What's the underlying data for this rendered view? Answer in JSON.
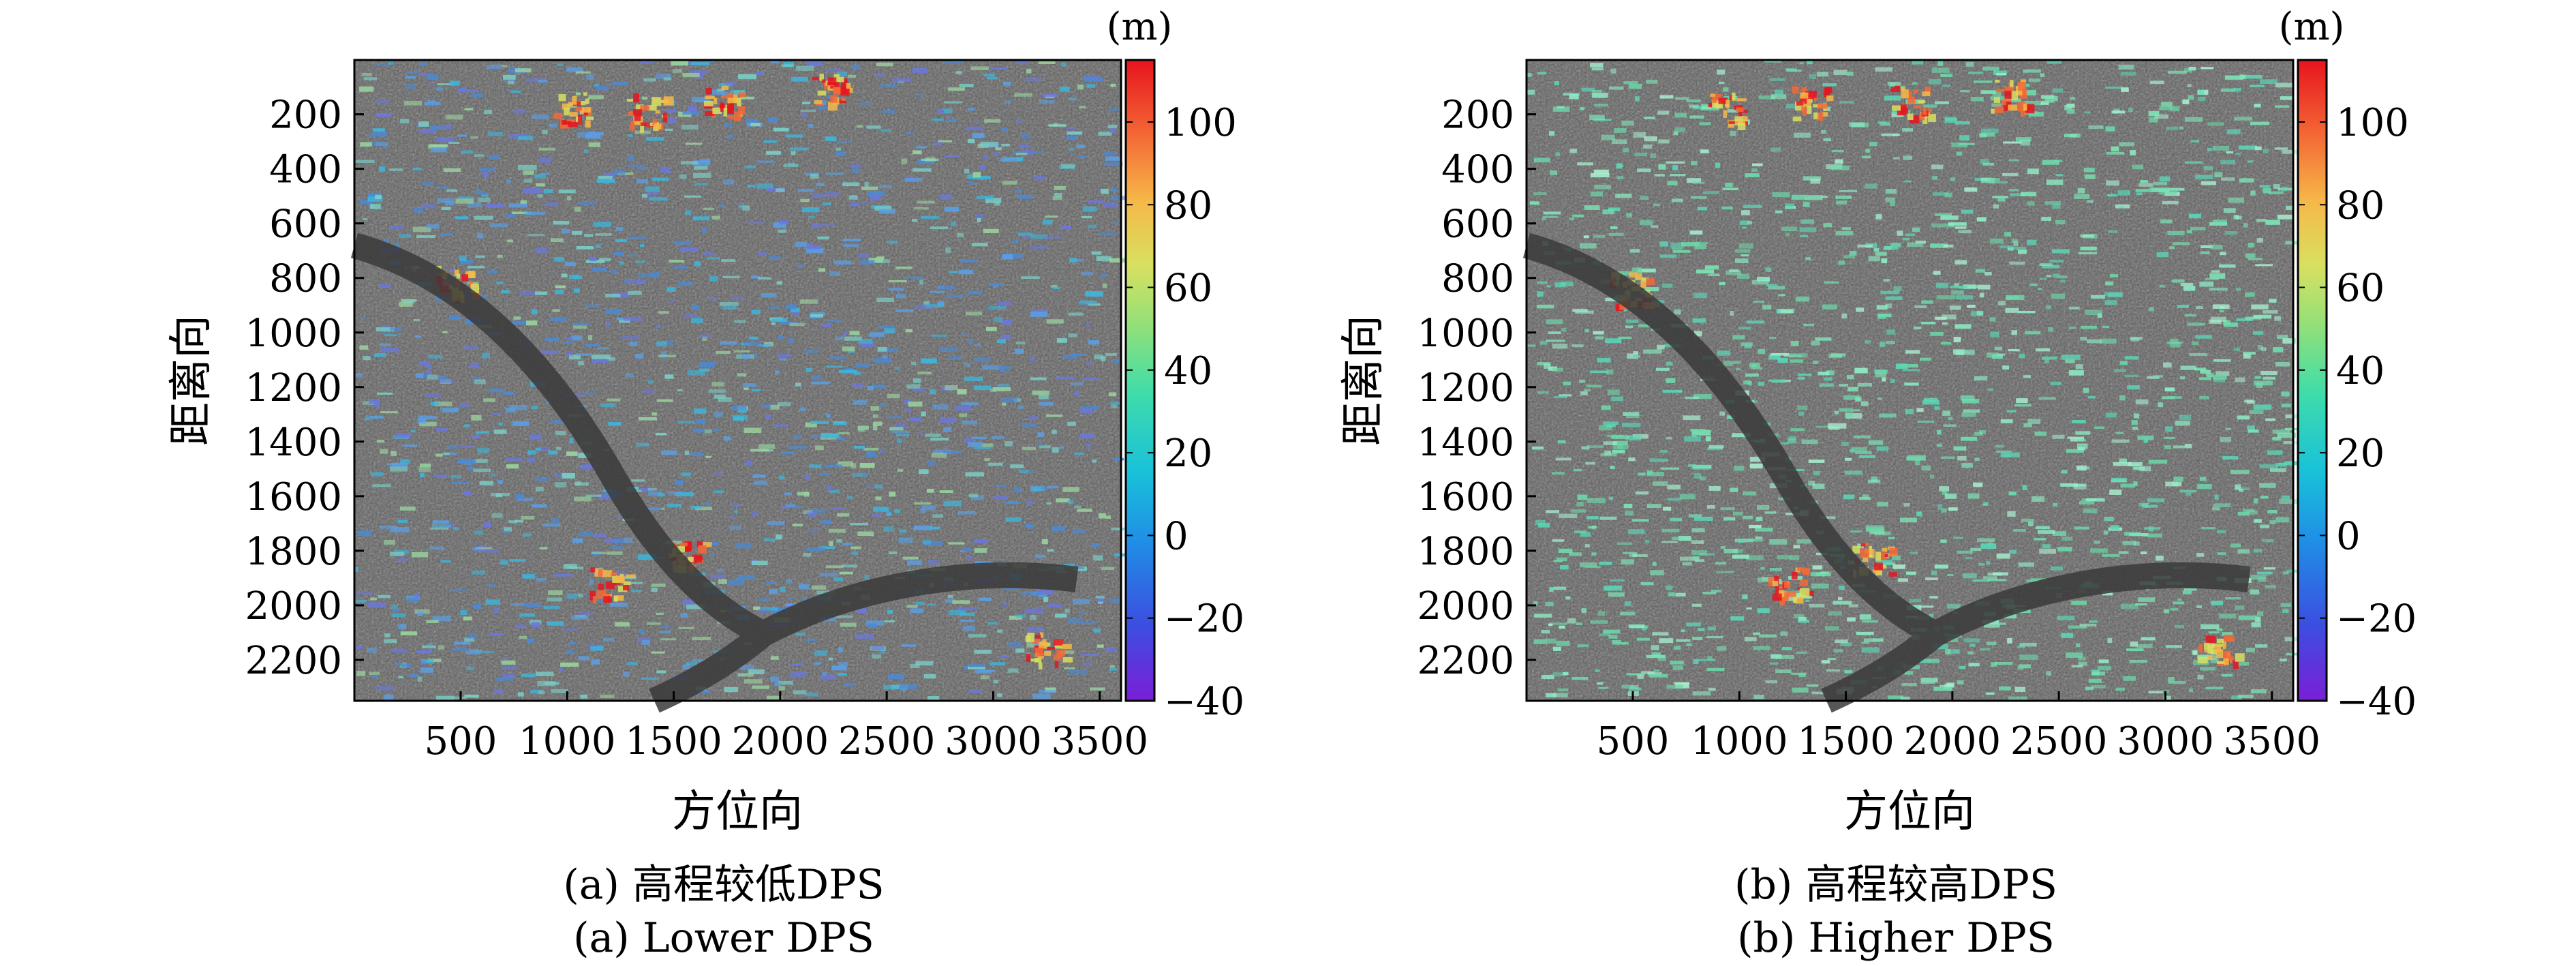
{
  "figure": {
    "panels": [
      {
        "id": "a",
        "caption_cn": "(a) 高程较低DPS",
        "caption_en": "(a) Lower DPS",
        "xlabel": "方位向",
        "ylabel": "距离向",
        "colorbar_unit": "(m)",
        "overlay_palette": "jet",
        "dominant_overlay_color": "#4a8ad8"
      },
      {
        "id": "b",
        "caption_cn": "(b) 高程较高DPS",
        "caption_en": "(b) Higher DPS",
        "xlabel": "方位向",
        "ylabel": "距离向",
        "colorbar_unit": "(m)",
        "overlay_palette": "jet",
        "dominant_overlay_color": "#7ee8b8"
      }
    ],
    "x_ticks": [
      "500",
      "1000",
      "1500",
      "2000",
      "2500",
      "3000",
      "3500"
    ],
    "y_ticks": [
      "200",
      "400",
      "600",
      "800",
      "1000",
      "1200",
      "1400",
      "1600",
      "1800",
      "2000",
      "2200"
    ],
    "colorbar_ticks": [
      "100",
      "80",
      "60",
      "40",
      "20",
      "0",
      "−20",
      "−40"
    ]
  },
  "chart_data": [
    {
      "type": "heatmap",
      "xlim": [
        1,
        3600
      ],
      "ylim": [
        2350,
        1
      ],
      "x_ticks": [
        500,
        1000,
        1500,
        2000,
        2500,
        3000,
        3500
      ],
      "y_ticks": [
        200,
        400,
        600,
        800,
        1000,
        1200,
        1400,
        1600,
        1800,
        2000,
        2200
      ],
      "colorbar": {
        "min": -40,
        "max": 115,
        "ticks": [
          100,
          80,
          60,
          40,
          20,
          0,
          -20,
          -40
        ],
        "unit": "(m)",
        "colormap": "jet"
      },
      "xlabel": "方位向",
      "ylabel": "距离向"
    },
    {
      "type": "heatmap",
      "xlim": [
        1,
        3600
      ],
      "ylim": [
        2350,
        1
      ],
      "x_ticks": [
        500,
        1000,
        1500,
        2000,
        2500,
        3000,
        3500
      ],
      "y_ticks": [
        200,
        400,
        600,
        800,
        1000,
        1200,
        1400,
        1600,
        1800,
        2000,
        2200
      ],
      "colorbar": {
        "min": -40,
        "max": 115,
        "ticks": [
          100,
          80,
          60,
          40,
          20,
          0,
          -20,
          -40
        ],
        "unit": "(m)",
        "colormap": "jet"
      },
      "xlabel": "方位向",
      "ylabel": "距离向"
    }
  ]
}
